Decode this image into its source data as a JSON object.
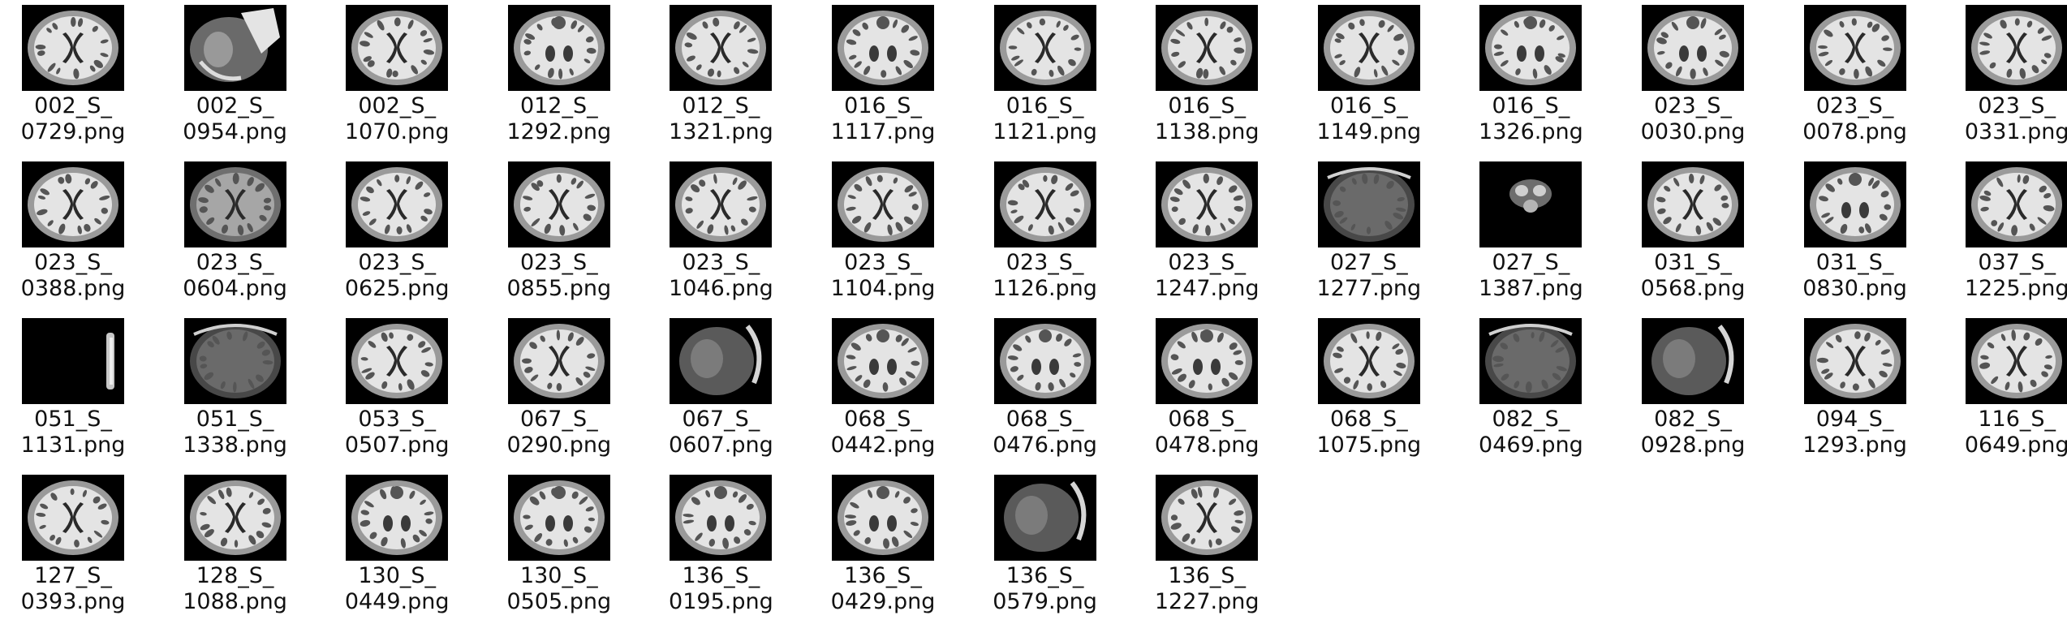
{
  "files": [
    {
      "name": [
        "002_S_",
        "0729.png"
      ],
      "kind": "axial"
    },
    {
      "name": [
        "002_S_",
        "0954.png"
      ],
      "kind": "sagittal-flare"
    },
    {
      "name": [
        "002_S_",
        "1070.png"
      ],
      "kind": "axial"
    },
    {
      "name": [
        "012_S_",
        "1292.png"
      ],
      "kind": "axial-low"
    },
    {
      "name": [
        "012_S_",
        "1321.png"
      ],
      "kind": "axial"
    },
    {
      "name": [
        "016_S_",
        "1117.png"
      ],
      "kind": "axial-low"
    },
    {
      "name": [
        "016_S_",
        "1121.png"
      ],
      "kind": "axial"
    },
    {
      "name": [
        "016_S_",
        "1138.png"
      ],
      "kind": "axial"
    },
    {
      "name": [
        "016_S_",
        "1149.png"
      ],
      "kind": "axial"
    },
    {
      "name": [
        "016_S_",
        "1326.png"
      ],
      "kind": "axial-low"
    },
    {
      "name": [
        "023_S_",
        "0030.png"
      ],
      "kind": "axial-low"
    },
    {
      "name": [
        "023_S_",
        "0078.png"
      ],
      "kind": "axial"
    },
    {
      "name": [
        "023_S_",
        "0331.png"
      ],
      "kind": "axial"
    },
    {
      "name": [
        "023_S_",
        "0388.png"
      ],
      "kind": "axial"
    },
    {
      "name": [
        "023_S_",
        "0604.png"
      ],
      "kind": "axial-dim"
    },
    {
      "name": [
        "023_S_",
        "0625.png"
      ],
      "kind": "axial"
    },
    {
      "name": [
        "023_S_",
        "0855.png"
      ],
      "kind": "axial"
    },
    {
      "name": [
        "023_S_",
        "1046.png"
      ],
      "kind": "axial"
    },
    {
      "name": [
        "023_S_",
        "1104.png"
      ],
      "kind": "axial"
    },
    {
      "name": [
        "023_S_",
        "1126.png"
      ],
      "kind": "axial"
    },
    {
      "name": [
        "023_S_",
        "1247.png"
      ],
      "kind": "axial"
    },
    {
      "name": [
        "027_S_",
        "1277.png"
      ],
      "kind": "axial-dark"
    },
    {
      "name": [
        "027_S_",
        "1387.png"
      ],
      "kind": "small-blob"
    },
    {
      "name": [
        "031_S_",
        "0568.png"
      ],
      "kind": "axial"
    },
    {
      "name": [
        "031_S_",
        "0830.png"
      ],
      "kind": "axial-low"
    },
    {
      "name": [
        "037_S_",
        "1225.png"
      ],
      "kind": "axial"
    },
    {
      "name": [
        "051_S_",
        "1131.png"
      ],
      "kind": "edge-strip"
    },
    {
      "name": [
        "051_S_",
        "1338.png"
      ],
      "kind": "axial-dark"
    },
    {
      "name": [
        "053_S_",
        "0507.png"
      ],
      "kind": "axial"
    },
    {
      "name": [
        "067_S_",
        "0290.png"
      ],
      "kind": "axial"
    },
    {
      "name": [
        "067_S_",
        "0607.png"
      ],
      "kind": "side-dark"
    },
    {
      "name": [
        "068_S_",
        "0442.png"
      ],
      "kind": "axial-low"
    },
    {
      "name": [
        "068_S_",
        "0476.png"
      ],
      "kind": "axial-low"
    },
    {
      "name": [
        "068_S_",
        "0478.png"
      ],
      "kind": "axial-low"
    },
    {
      "name": [
        "068_S_",
        "1075.png"
      ],
      "kind": "axial"
    },
    {
      "name": [
        "082_S_",
        "0469.png"
      ],
      "kind": "axial-dark"
    },
    {
      "name": [
        "082_S_",
        "0928.png"
      ],
      "kind": "side-dark"
    },
    {
      "name": [
        "094_S_",
        "1293.png"
      ],
      "kind": "axial"
    },
    {
      "name": [
        "116_S_",
        "0649.png"
      ],
      "kind": "axial"
    },
    {
      "name": [
        "127_S_",
        "0393.png"
      ],
      "kind": "axial"
    },
    {
      "name": [
        "128_S_",
        "1088.png"
      ],
      "kind": "axial"
    },
    {
      "name": [
        "130_S_",
        "0449.png"
      ],
      "kind": "axial-low"
    },
    {
      "name": [
        "130_S_",
        "0505.png"
      ],
      "kind": "axial-low"
    },
    {
      "name": [
        "136_S_",
        "0195.png"
      ],
      "kind": "axial-low"
    },
    {
      "name": [
        "136_S_",
        "0429.png"
      ],
      "kind": "axial-low"
    },
    {
      "name": [
        "136_S_",
        "0579.png"
      ],
      "kind": "side-dark"
    },
    {
      "name": [
        "136_S_",
        "1227.png"
      ],
      "kind": "axial"
    }
  ]
}
